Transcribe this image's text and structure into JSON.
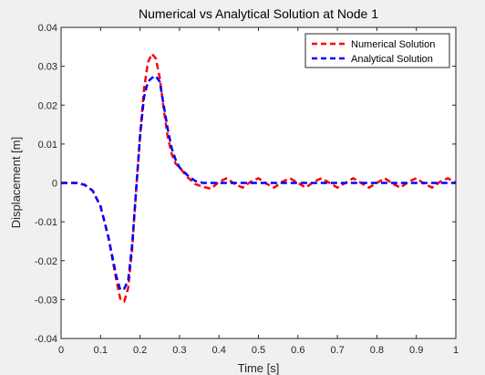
{
  "chart_data": {
    "type": "line",
    "title": "Numerical vs Analytical Solution at Node 1",
    "xlabel": "Time [s]",
    "ylabel": "Displacement [m]",
    "xlim": [
      0,
      1
    ],
    "ylim": [
      -0.04,
      0.04
    ],
    "xticks": [
      0,
      0.1,
      0.2,
      0.3,
      0.4,
      0.5,
      0.6,
      0.7,
      0.8,
      0.9,
      1
    ],
    "xtick_labels": [
      "0",
      "0.1",
      "0.2",
      "0.3",
      "0.4",
      "0.5",
      "0.6",
      "0.7",
      "0.8",
      "0.9",
      "1"
    ],
    "yticks": [
      -0.04,
      -0.03,
      -0.02,
      -0.01,
      0,
      0.01,
      0.02,
      0.03,
      0.04
    ],
    "ytick_labels": [
      "-0.04",
      "-0.03",
      "-0.02",
      "-0.01",
      "0",
      "0.01",
      "0.02",
      "0.03",
      "0.04"
    ],
    "grid": false,
    "legend_position": "top-right",
    "series": [
      {
        "name": "Numerical Solution",
        "color": "#ff0000",
        "style": "dashed",
        "x": [
          0,
          0.04,
          0.06,
          0.08,
          0.1,
          0.12,
          0.14,
          0.15,
          0.16,
          0.17,
          0.18,
          0.19,
          0.2,
          0.21,
          0.22,
          0.23,
          0.24,
          0.25,
          0.26,
          0.27,
          0.28,
          0.29,
          0.3,
          0.32,
          0.34,
          0.36,
          0.38,
          0.4,
          0.42,
          0.44,
          0.46,
          0.48,
          0.5,
          0.52,
          0.54,
          0.56,
          0.58,
          0.6,
          0.62,
          0.64,
          0.66,
          0.68,
          0.7,
          0.72,
          0.74,
          0.76,
          0.78,
          0.8,
          0.82,
          0.84,
          0.86,
          0.88,
          0.9,
          0.92,
          0.94,
          0.96,
          0.98,
          1
        ],
        "y": [
          0,
          0,
          -0.0005,
          -0.002,
          -0.006,
          -0.014,
          -0.025,
          -0.0298,
          -0.0305,
          -0.027,
          -0.017,
          -0.002,
          0.012,
          0.024,
          0.031,
          0.0332,
          0.032,
          0.027,
          0.019,
          0.012,
          0.0075,
          0.005,
          0.004,
          0.0015,
          -0.0003,
          -0.001,
          -0.0015,
          0.0003,
          0.0012,
          -0.0003,
          -0.0012,
          0.0003,
          0.0012,
          -0.0002,
          -0.0012,
          0.0003,
          0.0012,
          0,
          -0.0012,
          0.0003,
          0.0012,
          0,
          -0.0012,
          0,
          0.0012,
          0,
          -0.0012,
          0,
          0.0012,
          -0.0002,
          -0.0012,
          0.0003,
          0.0012,
          -0.0002,
          -0.0012,
          0.0003,
          0.0012,
          0
        ]
      },
      {
        "name": "Analytical Solution",
        "color": "#0000ff",
        "style": "dashed",
        "x": [
          0,
          0.04,
          0.06,
          0.08,
          0.1,
          0.12,
          0.14,
          0.15,
          0.16,
          0.17,
          0.18,
          0.19,
          0.2,
          0.21,
          0.22,
          0.23,
          0.24,
          0.25,
          0.26,
          0.27,
          0.28,
          0.29,
          0.3,
          0.32,
          0.34,
          0.36,
          0.38,
          0.4,
          1
        ],
        "y": [
          0,
          0,
          -0.0005,
          -0.002,
          -0.006,
          -0.014,
          -0.024,
          -0.0275,
          -0.0272,
          -0.025,
          -0.016,
          -0.002,
          0.012,
          0.022,
          0.026,
          0.027,
          0.0275,
          0.026,
          0.02,
          0.014,
          0.009,
          0.006,
          0.004,
          0.002,
          0.0005,
          0,
          0,
          0,
          0
        ]
      }
    ]
  }
}
